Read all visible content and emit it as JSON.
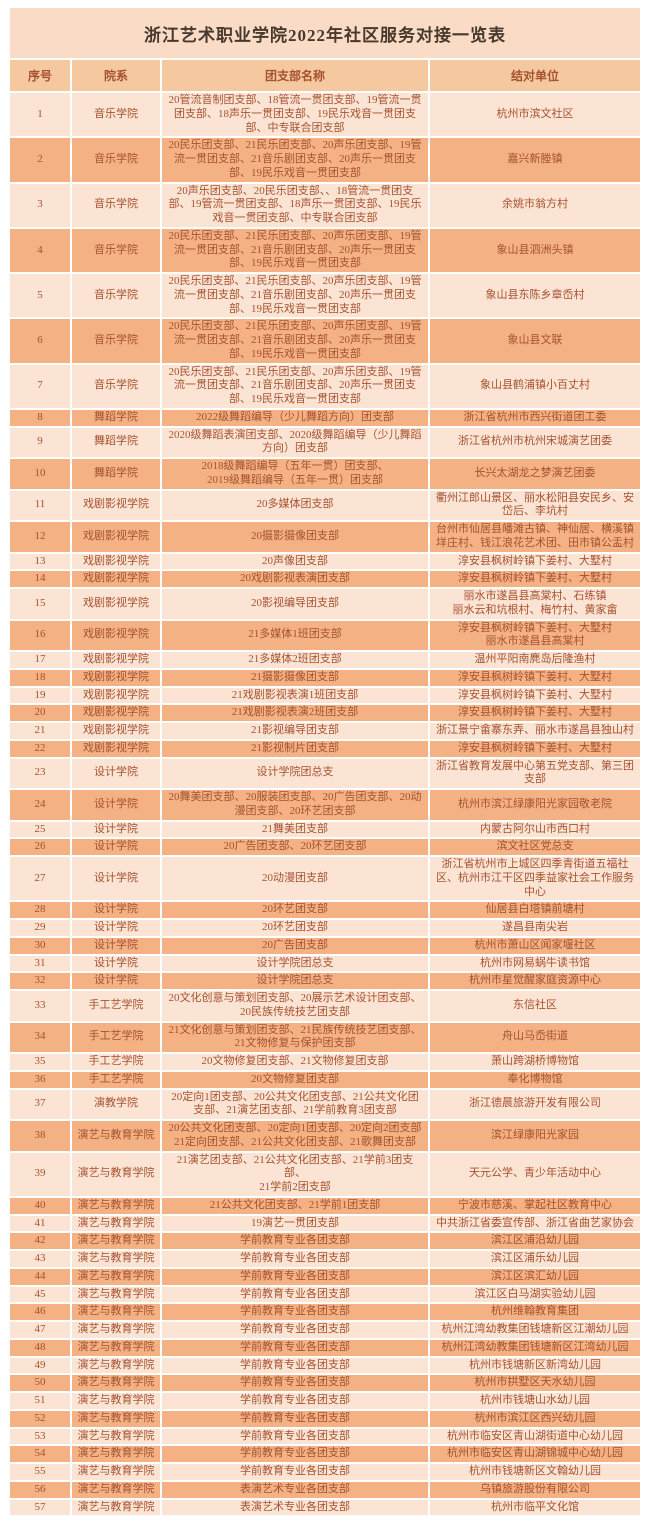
{
  "page": {
    "title": "浙江艺术职业学院2022年社区服务对接一览表"
  },
  "colors": {
    "title_bg": "#fadbc5",
    "title_text": "#47392e",
    "header_bg": "#f6c8a0",
    "row_light": "#fce4d4",
    "row_dark": "#f3b184",
    "text": "#a5522f"
  },
  "table": {
    "headers": [
      "序号",
      "院系",
      "团支部名称",
      "结对单位"
    ],
    "rows": [
      [
        "1",
        "音乐学院",
        "20管流音制团支部、18管流一贯团支部、19管流一贯团支部、18声乐一贯团支部、19民乐戏音一贯团支部、中专联合团支部",
        "杭州市滨文社区"
      ],
      [
        "2",
        "音乐学院",
        "20民乐团支部、21民乐团支部、20声乐团支部、19管流一贯团支部、21音乐剧团支部、20声乐一贯团支部、19民乐戏音一贯团支部",
        "嘉兴新塍镇"
      ],
      [
        "3",
        "音乐学院",
        "20声乐团支部、20民乐团支部、、18管流一贯团支部、19管流一贯团支部、18声乐一贯团支部、19民乐戏音一贯团支部、中专联合团支部",
        "余姚市翁方村"
      ],
      [
        "4",
        "音乐学院",
        "20民乐团支部、21民乐团支部、20声乐团支部、19管流一贯团支部、21音乐剧团支部、20声乐一贯团支部、19民乐戏音一贯团支部",
        "象山县泗洲头镇"
      ],
      [
        "5",
        "音乐学院",
        "20民乐团支部、21民乐团支部、20声乐团支部、19管流一贯团支部、21音乐剧团支部、20声乐一贯团支部、19民乐戏音一贯团支部",
        "象山县东陈乡章岙村"
      ],
      [
        "6",
        "音乐学院",
        "20民乐团支部、21民乐团支部、20声乐团支部、19管流一贯团支部、21音乐剧团支部、20声乐一贯团支部、19民乐戏音一贯团支部",
        "象山县文联"
      ],
      [
        "7",
        "音乐学院",
        "20民乐团支部、21民乐团支部、20声乐团支部、19管流一贯团支部、21音乐剧团支部、20声乐一贯团支部、19民乐戏音一贯团支部",
        "象山县鹤浦镇小百丈村"
      ],
      [
        "8",
        "舞蹈学院",
        "2022级舞蹈编导（少儿舞蹈方向）团支部",
        "浙江省杭州市西兴街道团工委"
      ],
      [
        "9",
        "舞蹈学院",
        "2020级舞蹈表演团支部、2020级舞蹈编导（少儿舞蹈方向）团支部",
        "浙江省杭州市杭州宋城演艺团委"
      ],
      [
        "10",
        "舞蹈学院",
        "2018级舞蹈编导（五年一贯）团支部、\n2019级舞蹈编导（五年一贯）团支部",
        "长兴太湖龙之梦演艺团委"
      ],
      [
        "11",
        "戏剧影视学院",
        "20多媒体团支部",
        "衢州江郎山景区、丽水松阳县安民乡、安岱后、李坑村"
      ],
      [
        "12",
        "戏剧影视学院",
        "20摄影摄像团支部",
        "台州市仙居县皤滩古镇、神仙居、横溪镇垟庄村、钱江浪花艺术团、田市镇公盂村"
      ],
      [
        "13",
        "戏剧影视学院",
        "20声像团支部",
        "淳安县枫树岭镇下姜村、大墅村"
      ],
      [
        "14",
        "戏剧影视学院",
        "20戏剧影视表演团支部",
        "淳安县枫树岭镇下姜村、大墅村"
      ],
      [
        "15",
        "戏剧影视学院",
        "20影视编导团支部",
        "丽水市遂昌县高棠村、石练镇\n丽水云和坑根村、梅竹村、黄家畲"
      ],
      [
        "16",
        "戏剧影视学院",
        "21多媒体1班团支部",
        "淳安县枫树岭镇下姜村、大墅村\n丽水市遂昌县高棠村"
      ],
      [
        "17",
        "戏剧影视学院",
        "21多媒体2班团支部",
        "温州平阳南麂岛后隆渔村"
      ],
      [
        "18",
        "戏剧影视学院",
        "21摄影摄像团支部",
        "淳安县枫树岭镇下姜村、大墅村"
      ],
      [
        "19",
        "戏剧影视学院",
        "21戏剧影视表演1班团支部",
        "淳安县枫树岭镇下姜村、大墅村"
      ],
      [
        "20",
        "戏剧影视学院",
        "21戏剧影视表演2班团支部",
        "淳安县枫树岭镇下姜村、大墅村"
      ],
      [
        "21",
        "戏剧影视学院",
        "21影视编导团支部",
        "浙江景宁畲寨东弄、丽水市遂昌县独山村"
      ],
      [
        "22",
        "戏剧影视学院",
        "21影视制片团支部",
        "淳安县枫树岭镇下姜村、大墅村"
      ],
      [
        "23",
        "设计学院",
        "设计学院团总支",
        "浙江省教育发展中心第五党支部、第三团支部"
      ],
      [
        "24",
        "设计学院",
        "20舞美团支部、20服装团支部、20广告团支部、20动漫团支部、20环艺团支部",
        "杭州市滨江绿康阳光家园敬老院"
      ],
      [
        "25",
        "设计学院",
        "21舞美团支部",
        "内蒙古阿尔山市西口村"
      ],
      [
        "26",
        "设计学院",
        "20广告团支部、20环艺团支部",
        "滨文社区党总支"
      ],
      [
        "27",
        "设计学院",
        "20动漫团支部",
        "浙江省杭州市上城区四季青街道五福社区、杭州市江干区四季益家社会工作服务中心"
      ],
      [
        "28",
        "设计学院",
        "20环艺团支部",
        "仙居县白塔镇前塘村"
      ],
      [
        "29",
        "设计学院",
        "20环艺团支部",
        "遂昌县南尖岩"
      ],
      [
        "30",
        "设计学院",
        "20广告团支部",
        "杭州市萧山区闻家堰社区"
      ],
      [
        "31",
        "设计学院",
        "设计学院团总支",
        "杭州市网易蜗牛读书馆"
      ],
      [
        "32",
        "设计学院",
        "设计学院团总支",
        "杭州市星觉醒家庭资源中心"
      ],
      [
        "33",
        "手工艺学院",
        "20文化创意与策划团支部、20展示艺术设计团支部、20民族传统技艺团支部",
        "东信社区"
      ],
      [
        "34",
        "手工艺学院",
        "21文化创意与策划团支部、21民族传统技艺团支部、21文物修复与保护团支部",
        "舟山马岙街道"
      ],
      [
        "35",
        "手工艺学院",
        "20文物修复团支部、21文物修复团支部",
        "萧山跨湖桥博物馆"
      ],
      [
        "36",
        "手工艺学院",
        "20文物修复团支部",
        "奉化博物馆"
      ],
      [
        "37",
        "演教学院",
        "20定向1团支部、20公共文化团支部、21公共文化团支部、21演艺团支部、21学前教育3团支部",
        "浙江德晨旅游开发有限公司"
      ],
      [
        "38",
        "演艺与教育学院",
        "20公共文化团支部、20定向1团支部、20定向2团支部\n21定向团支部、21公共文化团支部、21歌舞团支部",
        "滨江绿康阳光家园"
      ],
      [
        "39",
        "演艺与教育学院",
        "21演艺团支部、21公共文化团支部、21学前3团支部、\n21学前2团支部",
        "天元公学、青少年活动中心"
      ],
      [
        "40",
        "演艺与教育学院",
        "21公共文化团支部、21学前1团支部",
        "宁波市慈溪、掌起社区教育中心"
      ],
      [
        "41",
        "演艺与教育学院",
        "19演艺一贯团支部",
        "中共浙江省委宣传部、浙江省曲艺家协会"
      ],
      [
        "42",
        "演艺与教育学院",
        "学前教育专业各团支部",
        "滨江区浦沿幼儿园"
      ],
      [
        "43",
        "演艺与教育学院",
        "学前教育专业各团支部",
        "滨江区浦乐幼儿园"
      ],
      [
        "44",
        "演艺与教育学院",
        "学前教育专业各团支部",
        "滨江区滨汇幼儿园"
      ],
      [
        "45",
        "演艺与教育学院",
        "学前教育专业各团支部",
        "滨江区白马湖实验幼儿园"
      ],
      [
        "46",
        "演艺与教育学院",
        "学前教育专业各团支部",
        "杭州维翰教育集团"
      ],
      [
        "47",
        "演艺与教育学院",
        "学前教育专业各团支部",
        "杭州江湾幼教集团钱塘新区江潮幼儿园"
      ],
      [
        "48",
        "演艺与教育学院",
        "学前教育专业各团支部",
        "杭州江湾幼教集团钱塘新区江湾幼儿园"
      ],
      [
        "49",
        "演艺与教育学院",
        "学前教育专业各团支部",
        "杭州市钱塘新区新湾幼儿园"
      ],
      [
        "50",
        "演艺与教育学院",
        "学前教育专业各团支部",
        "杭州市拱墅区天水幼儿园"
      ],
      [
        "51",
        "演艺与教育学院",
        "学前教育专业各团支部",
        "杭州市钱塘山水幼儿园"
      ],
      [
        "52",
        "演艺与教育学院",
        "学前教育专业各团支部",
        "杭州市滨江区西兴幼儿园"
      ],
      [
        "53",
        "演艺与教育学院",
        "学前教育专业各团支部",
        "杭州市临安区青山湖街道中心幼儿园"
      ],
      [
        "54",
        "演艺与教育学院",
        "学前教育专业各团支部",
        "杭州市临安区青山湖锦城中心幼儿园"
      ],
      [
        "55",
        "演艺与教育学院",
        "学前教育专业各团支部",
        "杭州市钱塘新区文翰幼儿园"
      ],
      [
        "56",
        "演艺与教育学院",
        "表演艺术专业各团支部",
        "乌镇旅游股份有限公司"
      ],
      [
        "57",
        "演艺与教育学院",
        "表演艺术专业各团支部",
        "杭州市临平文化馆"
      ]
    ]
  }
}
